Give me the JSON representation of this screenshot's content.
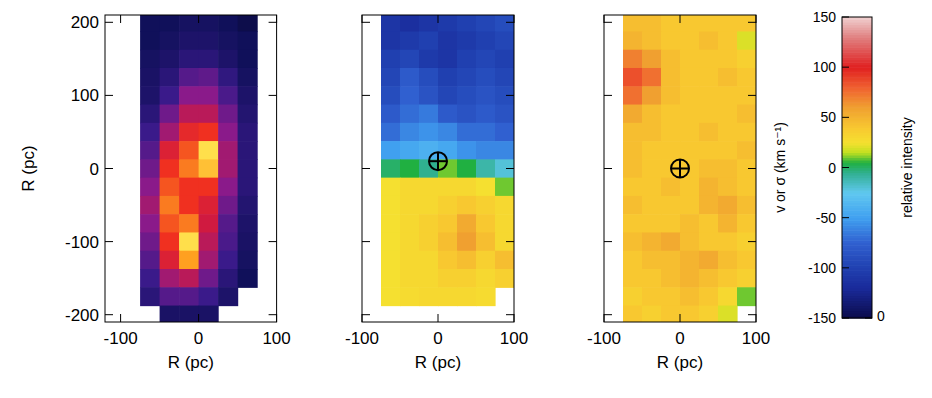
{
  "chart_data": {
    "type": "heatmap",
    "panels": [
      {
        "type": "heatmap",
        "xlabel": "R (pc)",
        "ylabel": "R (pc)",
        "tick_labels": true,
        "xlim": [
          -120,
          100
        ],
        "ylim": [
          -210,
          210
        ],
        "xticks": [
          -100,
          0,
          100
        ],
        "yticks": [
          -200,
          -100,
          0,
          100,
          200
        ],
        "clim": [
          0,
          1
        ],
        "x": [
          -87.5,
          -62.5,
          -37.5,
          -12.5,
          12.5,
          37.5,
          62.5,
          87.5
        ],
        "y": [
          200,
          175,
          150,
          125,
          100,
          75,
          50,
          25,
          0,
          -25,
          -50,
          -75,
          -100,
          -125,
          -150,
          -175,
          -200
        ],
        "values": [
          [
            null,
            0.12,
            0.12,
            0.14,
            0.14,
            0.12,
            0.1,
            null
          ],
          [
            null,
            0.12,
            0.14,
            0.16,
            0.16,
            0.14,
            0.12,
            null
          ],
          [
            null,
            0.14,
            0.16,
            0.2,
            0.2,
            0.16,
            0.12,
            null
          ],
          [
            null,
            0.15,
            0.2,
            0.3,
            0.32,
            0.22,
            0.14,
            null
          ],
          [
            null,
            0.16,
            0.25,
            0.4,
            0.4,
            0.28,
            0.16,
            null
          ],
          [
            null,
            0.2,
            0.35,
            0.5,
            0.5,
            0.35,
            0.18,
            null
          ],
          [
            null,
            0.25,
            0.45,
            0.65,
            0.7,
            0.4,
            0.2,
            null
          ],
          [
            null,
            0.3,
            0.6,
            0.75,
            0.95,
            0.45,
            0.2,
            null
          ],
          [
            null,
            0.35,
            0.7,
            0.8,
            0.9,
            0.45,
            0.2,
            null
          ],
          [
            null,
            0.4,
            0.75,
            0.7,
            0.7,
            0.4,
            0.2,
            null
          ],
          [
            null,
            0.45,
            0.8,
            0.7,
            0.6,
            0.35,
            0.18,
            null
          ],
          [
            null,
            0.4,
            0.75,
            0.8,
            0.55,
            0.3,
            0.16,
            null
          ],
          [
            null,
            0.35,
            0.7,
            0.95,
            0.5,
            0.28,
            0.15,
            null
          ],
          [
            null,
            0.3,
            0.6,
            0.85,
            0.45,
            0.25,
            0.14,
            null
          ],
          [
            null,
            0.25,
            0.45,
            0.5,
            0.35,
            0.2,
            0.12,
            null
          ],
          [
            null,
            0.2,
            0.3,
            0.3,
            0.25,
            0.16,
            null,
            null
          ],
          [
            null,
            null,
            0.15,
            0.15,
            0.15,
            null,
            null,
            null
          ]
        ]
      },
      {
        "type": "heatmap",
        "xlabel": "R (pc)",
        "tick_labels": "x",
        "xlim": [
          -100,
          100
        ],
        "ylim": [
          -210,
          210
        ],
        "xticks": [
          -100,
          0,
          100
        ],
        "yticks": [
          -200,
          -100,
          0,
          100,
          200
        ],
        "clim": [
          -150,
          150
        ],
        "nucleus": [
          0,
          10
        ],
        "x": [
          -87.5,
          -62.5,
          -37.5,
          -12.5,
          12.5,
          37.5,
          62.5,
          87.5
        ],
        "y": [
          200,
          175,
          150,
          125,
          100,
          75,
          50,
          25,
          0,
          -25,
          -50,
          -75,
          -100,
          -125,
          -150,
          -175,
          -200
        ],
        "values": [
          [
            null,
            -110,
            -115,
            -110,
            -105,
            -100,
            -95,
            -90
          ],
          [
            null,
            -110,
            -105,
            -100,
            -110,
            -105,
            -100,
            -95
          ],
          [
            null,
            -100,
            -95,
            -105,
            -110,
            -100,
            -95,
            -100
          ],
          [
            null,
            -95,
            -80,
            -90,
            -100,
            -95,
            -90,
            -95
          ],
          [
            null,
            -90,
            -75,
            -85,
            -95,
            -90,
            -85,
            -90
          ],
          [
            null,
            -80,
            -70,
            -65,
            -80,
            -85,
            -80,
            -85
          ],
          [
            null,
            -70,
            -60,
            -55,
            -60,
            -70,
            -70,
            -75
          ],
          [
            null,
            -50,
            -45,
            -40,
            -45,
            -55,
            -60,
            -60
          ],
          [
            null,
            0,
            5,
            -5,
            10,
            5,
            -10,
            -20
          ],
          [
            null,
            25,
            30,
            30,
            30,
            30,
            25,
            10
          ],
          [
            null,
            25,
            30,
            30,
            35,
            40,
            35,
            30
          ],
          [
            null,
            25,
            30,
            35,
            40,
            55,
            40,
            30
          ],
          [
            null,
            25,
            30,
            35,
            45,
            60,
            45,
            30
          ],
          [
            null,
            25,
            30,
            30,
            40,
            45,
            35,
            45
          ],
          [
            null,
            25,
            30,
            30,
            35,
            35,
            30,
            35
          ],
          [
            null,
            25,
            28,
            30,
            30,
            30,
            28,
            null
          ],
          [
            null,
            null,
            null,
            null,
            null,
            null,
            null,
            null
          ]
        ]
      },
      {
        "type": "heatmap",
        "xlabel": "R (pc)",
        "tick_labels": "x",
        "xlim": [
          -100,
          100
        ],
        "ylim": [
          -210,
          210
        ],
        "xticks": [
          -100,
          0,
          100
        ],
        "yticks": [
          -200,
          -100,
          0,
          100,
          200
        ],
        "clim": [
          -150,
          150
        ],
        "nucleus": [
          0,
          0
        ],
        "x": [
          -87.5,
          -62.5,
          -37.5,
          -12.5,
          12.5,
          37.5,
          62.5,
          87.5
        ],
        "y": [
          200,
          175,
          150,
          125,
          100,
          75,
          50,
          25,
          0,
          -25,
          -50,
          -75,
          -100,
          -125,
          -150,
          -175,
          -200
        ],
        "values": [
          [
            null,
            45,
            45,
            40,
            40,
            40,
            40,
            40
          ],
          [
            null,
            50,
            45,
            40,
            40,
            45,
            40,
            20
          ],
          [
            null,
            70,
            60,
            45,
            40,
            40,
            40,
            35
          ],
          [
            null,
            85,
            75,
            45,
            40,
            40,
            45,
            40
          ],
          [
            null,
            75,
            60,
            45,
            40,
            40,
            40,
            40
          ],
          [
            null,
            55,
            45,
            40,
            40,
            40,
            40,
            45
          ],
          [
            null,
            45,
            45,
            40,
            40,
            45,
            40,
            40
          ],
          [
            null,
            45,
            40,
            40,
            40,
            40,
            40,
            45
          ],
          [
            null,
            45,
            40,
            40,
            40,
            45,
            45,
            40
          ],
          [
            null,
            40,
            40,
            45,
            40,
            50,
            45,
            40
          ],
          [
            null,
            45,
            40,
            40,
            40,
            50,
            55,
            45
          ],
          [
            null,
            40,
            40,
            40,
            45,
            40,
            50,
            40
          ],
          [
            null,
            45,
            50,
            55,
            45,
            40,
            40,
            35
          ],
          [
            null,
            40,
            45,
            45,
            50,
            55,
            45,
            40
          ],
          [
            null,
            40,
            40,
            45,
            50,
            45,
            40,
            35
          ],
          [
            null,
            35,
            40,
            40,
            45,
            40,
            30,
            10
          ],
          [
            null,
            40,
            35,
            40,
            40,
            35,
            20,
            null
          ]
        ]
      }
    ],
    "colorbar": {
      "range": [
        -150,
        150
      ],
      "ticks": [
        -150,
        -100,
        -50,
        0,
        50,
        100,
        150
      ],
      "label": "v or σ (km s⁻¹)",
      "intensity_label": "relative intensity",
      "intensity_range": [
        0,
        1
      ],
      "intensity_ticks": [
        0
      ]
    }
  }
}
